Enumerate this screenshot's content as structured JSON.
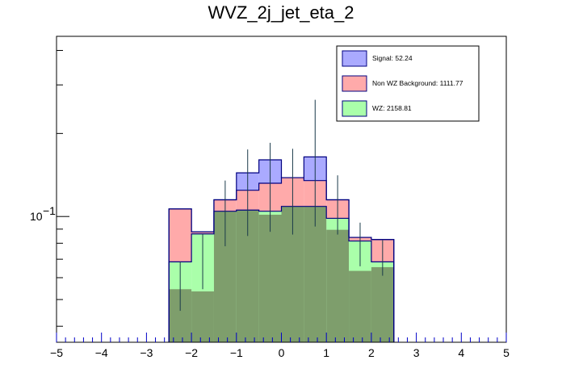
{
  "chart_data": {
    "type": "bar",
    "title": "WVZ_2j_jet_eta_2",
    "xlabel": "",
    "ylabel": "",
    "xlim": [
      -5,
      5
    ],
    "y_scale": "log",
    "ylim": [
      0.035,
      0.45
    ],
    "x_ticks": [
      -5,
      -4,
      -3,
      -2,
      -1,
      0,
      1,
      2,
      3,
      4,
      5
    ],
    "x_tick_labels": [
      "−5",
      "−4",
      "−3",
      "−2",
      "−1",
      "0",
      "1",
      "2",
      "3",
      "4",
      "5"
    ],
    "y_tick_label": {
      "value": 0.1,
      "base": "10",
      "exponent": "−1"
    },
    "bin_edges": [
      -2.5,
      -2.0,
      -1.5,
      -1.0,
      -0.5,
      0.0,
      0.5,
      1.0,
      1.5,
      2.0,
      2.5
    ],
    "stack_order": [
      "WZ",
      "Non WZ Background",
      "Signal"
    ],
    "series": [
      {
        "name": "WZ",
        "color": "#aaffaa",
        "values": [
          0.0685,
          0.0865,
          0.1045,
          0.1055,
          0.1045,
          0.1088,
          0.1088,
          0.0985,
          0.0815,
          0.0685
        ]
      },
      {
        "name": "Non WZ Background",
        "color": "#ffaaaa",
        "values": [
          0.038,
          0.0015,
          0.0105,
          0.019,
          0.0275,
          0.0295,
          0.0262,
          0.0165,
          0.0025,
          0.014
        ]
      },
      {
        "name": "Signal",
        "color": "#aaaaff",
        "values": [
          0.0,
          0.0,
          0.0,
          0.0195,
          0.0285,
          0.0,
          0.0295,
          0.0,
          0.0,
          0.0
        ]
      }
    ],
    "overlap_fill": {
      "color": "#7e9e6c",
      "values": [
        0.0545,
        0.0535,
        0.1045,
        0.1055,
        0.1015,
        0.1088,
        0.1088,
        0.0895,
        0.0635,
        0.0655
      ]
    },
    "error_bars": [
      {
        "x": -2.25,
        "low": 0.0455,
        "high": 0.0685
      },
      {
        "x": -1.75,
        "low": 0.0545,
        "high": 0.0865
      },
      {
        "x": -1.25,
        "low": 0.078,
        "high": 0.135
      },
      {
        "x": -0.75,
        "low": 0.085,
        "high": 0.175
      },
      {
        "x": -0.25,
        "low": 0.088,
        "high": 0.185
      },
      {
        "x": 0.25,
        "low": 0.086,
        "high": 0.176
      },
      {
        "x": 0.75,
        "low": 0.092,
        "high": 0.265
      },
      {
        "x": 1.25,
        "low": 0.086,
        "high": 0.141
      },
      {
        "x": 1.75,
        "low": 0.066,
        "high": 0.095
      },
      {
        "x": 2.25,
        "low": 0.061,
        "high": 0.082
      }
    ],
    "legend": {
      "placement": "top-right",
      "entries": [
        {
          "label": "Signal: 52.24",
          "color": "#aaaaff"
        },
        {
          "label": "Non WZ Background: 1111.77",
          "color": "#ffaaaa"
        },
        {
          "label": "WZ: 2158.81",
          "color": "#aaffaa"
        }
      ]
    }
  }
}
